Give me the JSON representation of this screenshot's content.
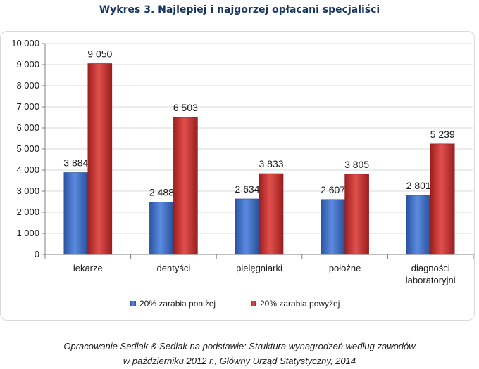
{
  "title": "Wykres 3. Najlepiej i najgorzej opłacani specjaliści",
  "source_lines": [
    "Opracowanie Sedlak & Sedlak na podstawie: Struktura wynagrodzeń według zawodów",
    "w październiku 2012 r., Główny Urząd Statystyczny,  2014"
  ],
  "colors": {
    "series_low": "#3e6fc5",
    "series_high": "#c3302f",
    "grid": "#d9d9d9"
  },
  "chart_data": {
    "type": "bar",
    "categories": [
      [
        "lekarze"
      ],
      [
        "dentyści"
      ],
      [
        "pielęgniarki"
      ],
      [
        "położne"
      ],
      [
        "diagności",
        "laboratoryjni"
      ]
    ],
    "series": [
      {
        "name": "20% zarabia poniżej",
        "values": [
          3884,
          2488,
          2634,
          2607,
          2801
        ],
        "labels": [
          "3 884",
          "2 488",
          "2 634",
          "2 607",
          "2 801"
        ]
      },
      {
        "name": "20% zarabia powyżej",
        "values": [
          9050,
          6503,
          3833,
          3805,
          5239
        ],
        "labels": [
          "9 050",
          "6 503",
          "3 833",
          "3 805",
          "5 239"
        ]
      }
    ],
    "ylim": [
      0,
      10000
    ],
    "yticks": [
      0,
      1000,
      2000,
      3000,
      4000,
      5000,
      6000,
      7000,
      8000,
      9000,
      10000
    ],
    "ytick_labels": [
      "0",
      "1 000",
      "2 000",
      "3 000",
      "4 000",
      "5 000",
      "6 000",
      "7 000",
      "8 000",
      "9 000",
      "10 000"
    ],
    "grid": true,
    "legend_position": "bottom"
  }
}
